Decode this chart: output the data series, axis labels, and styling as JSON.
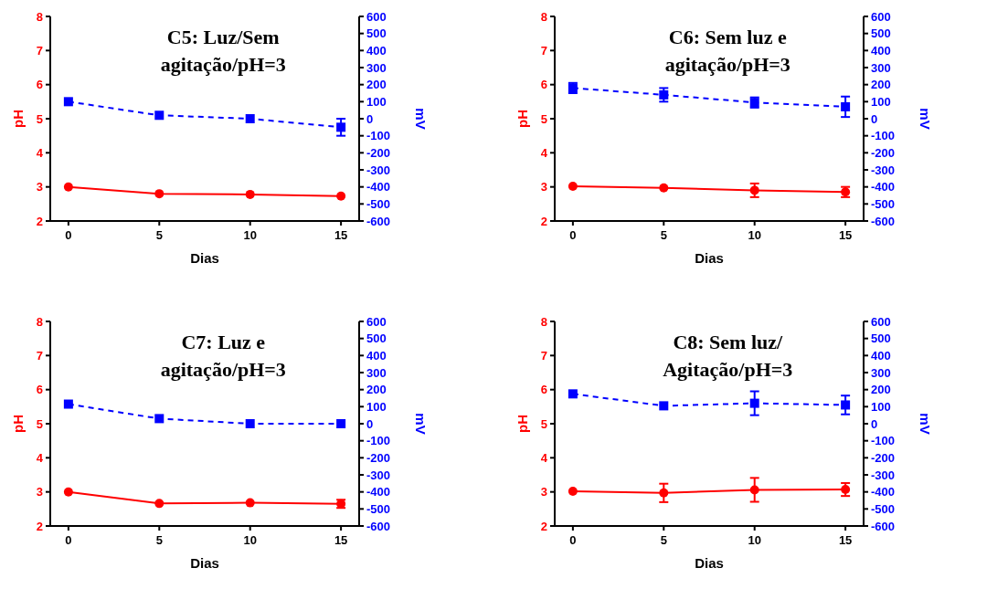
{
  "chart_data": [
    {
      "type": "line",
      "title": "C5: Luz/Sem agitação/pH=3",
      "xlabel": "Dias",
      "ylabel": "pH",
      "y2label": "mV",
      "x": [
        0,
        5,
        10,
        15
      ],
      "xlim": [
        -1,
        16
      ],
      "xticks": [
        0,
        5,
        10,
        15
      ],
      "ylim": [
        2,
        8
      ],
      "yticks": [
        2,
        3,
        4,
        5,
        6,
        7,
        8
      ],
      "y2lim": [
        -600,
        600
      ],
      "y2ticks": [
        -600,
        -500,
        -400,
        -300,
        -200,
        -100,
        0,
        100,
        200,
        300,
        400,
        500,
        600
      ],
      "grid": false,
      "series": [
        {
          "color": "#ff0000",
          "values": [
            3.0,
            2.8,
            2.78,
            2.73
          ],
          "errors": [
            null,
            null,
            null,
            null
          ],
          "marker": "circle",
          "line_style": "solid"
        },
        {
          "color": "#0000ff",
          "values": [
            100,
            20,
            0,
            -50
          ],
          "errors": [
            null,
            null,
            null,
            50
          ],
          "marker": "square",
          "line_style": "dashed",
          "axis": "y2"
        }
      ]
    },
    {
      "type": "line",
      "title": "C6: Sem luz e agitação/pH=3",
      "xlabel": "Dias",
      "ylabel": "pH",
      "y2label": "mV",
      "x": [
        0,
        5,
        10,
        15
      ],
      "xlim": [
        -1,
        16
      ],
      "xticks": [
        0,
        5,
        10,
        15
      ],
      "ylim": [
        2,
        8
      ],
      "yticks": [
        2,
        3,
        4,
        5,
        6,
        7,
        8
      ],
      "y2lim": [
        -600,
        600
      ],
      "y2ticks": [
        -600,
        -500,
        -400,
        -300,
        -200,
        -100,
        0,
        100,
        200,
        300,
        400,
        500,
        600
      ],
      "grid": false,
      "series": [
        {
          "color": "#ff0000",
          "values": [
            3.02,
            2.97,
            2.9,
            2.85
          ],
          "errors": [
            null,
            null,
            0.2,
            0.15
          ],
          "marker": "circle",
          "line_style": "solid"
        },
        {
          "color": "#0000ff",
          "values": [
            180,
            140,
            95,
            70
          ],
          "errors": [
            30,
            40,
            30,
            60
          ],
          "marker": "square",
          "line_style": "dashed",
          "axis": "y2"
        }
      ]
    },
    {
      "type": "line",
      "title": "C7: Luz e agitação/pH=3",
      "xlabel": "Dias",
      "ylabel": "pH",
      "y2label": "mV",
      "x": [
        0,
        5,
        10,
        15
      ],
      "xlim": [
        -1,
        16
      ],
      "xticks": [
        0,
        5,
        10,
        15
      ],
      "ylim": [
        2,
        8
      ],
      "yticks": [
        2,
        3,
        4,
        5,
        6,
        7,
        8
      ],
      "y2lim": [
        -600,
        600
      ],
      "y2ticks": [
        -600,
        -500,
        -400,
        -300,
        -200,
        -100,
        0,
        100,
        200,
        300,
        400,
        500,
        600
      ],
      "grid": false,
      "series": [
        {
          "color": "#ff0000",
          "values": [
            3.0,
            2.66,
            2.68,
            2.65
          ],
          "errors": [
            null,
            null,
            null,
            0.12
          ],
          "marker": "circle",
          "line_style": "solid"
        },
        {
          "color": "#0000ff",
          "values": [
            115,
            30,
            0,
            0
          ],
          "errors": [
            null,
            null,
            null,
            null
          ],
          "marker": "square",
          "line_style": "dashed",
          "axis": "y2"
        }
      ]
    },
    {
      "type": "line",
      "title": "C8: Sem luz/ Agitação/pH=3",
      "xlabel": "Dias",
      "ylabel": "pH",
      "y2label": "mV",
      "x": [
        0,
        5,
        10,
        15
      ],
      "xlim": [
        -1,
        16
      ],
      "xticks": [
        0,
        5,
        10,
        15
      ],
      "ylim": [
        2,
        8
      ],
      "yticks": [
        2,
        3,
        4,
        5,
        6,
        7,
        8
      ],
      "y2lim": [
        -600,
        600
      ],
      "y2ticks": [
        -600,
        -500,
        -400,
        -300,
        -200,
        -100,
        0,
        100,
        200,
        300,
        400,
        500,
        600
      ],
      "grid": false,
      "series": [
        {
          "color": "#ff0000",
          "values": [
            3.02,
            2.97,
            3.06,
            3.07
          ],
          "errors": [
            null,
            0.27,
            0.35,
            0.19
          ],
          "marker": "circle",
          "line_style": "solid"
        },
        {
          "color": "#0000ff",
          "values": [
            175,
            105,
            120,
            110
          ],
          "errors": [
            null,
            null,
            70,
            55
          ],
          "marker": "square",
          "line_style": "dashed",
          "axis": "y2"
        }
      ]
    }
  ]
}
